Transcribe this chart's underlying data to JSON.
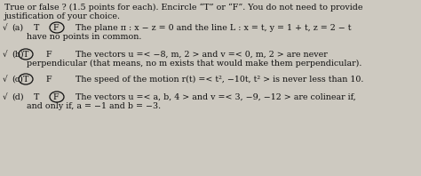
{
  "bg_color": "#cdc9c0",
  "text_color": "#111111",
  "title_line1": "True or false ? (1.5 points for each). Encircle “T” or “F”. You do not need to provide",
  "title_line2": "justification of your choice.",
  "rows": [
    {
      "label": "(a)",
      "show_check": true,
      "circle_on": "F",
      "text1": "The plane π : x − z = 0 and the line L : x = t, y = 1 + t, z = 2 − t",
      "text2": "have no points in common."
    },
    {
      "label": "(b)",
      "show_check": true,
      "circle_on": "T",
      "text1": "The vectors u =< −8, m, 2 > and v =< 0, m, 2 > are never",
      "text2": "perpendicular (that means, no m exists that would make them perpendicular)."
    },
    {
      "label": "(c)",
      "show_check": true,
      "circle_on": "T",
      "text1": "The speed of the motion r(t) =< t², −10t, t² > is never less than 10.",
      "text2": null
    },
    {
      "label": "(d)",
      "show_check": true,
      "circle_on": "F",
      "text1": "The vectors u =< a, b, 4 > and v =< 3, −9, −12 > are colinear if,",
      "text2": "and only if, a = −1 and b = −3."
    }
  ],
  "font_size": 6.8,
  "circle_lw": 0.9
}
